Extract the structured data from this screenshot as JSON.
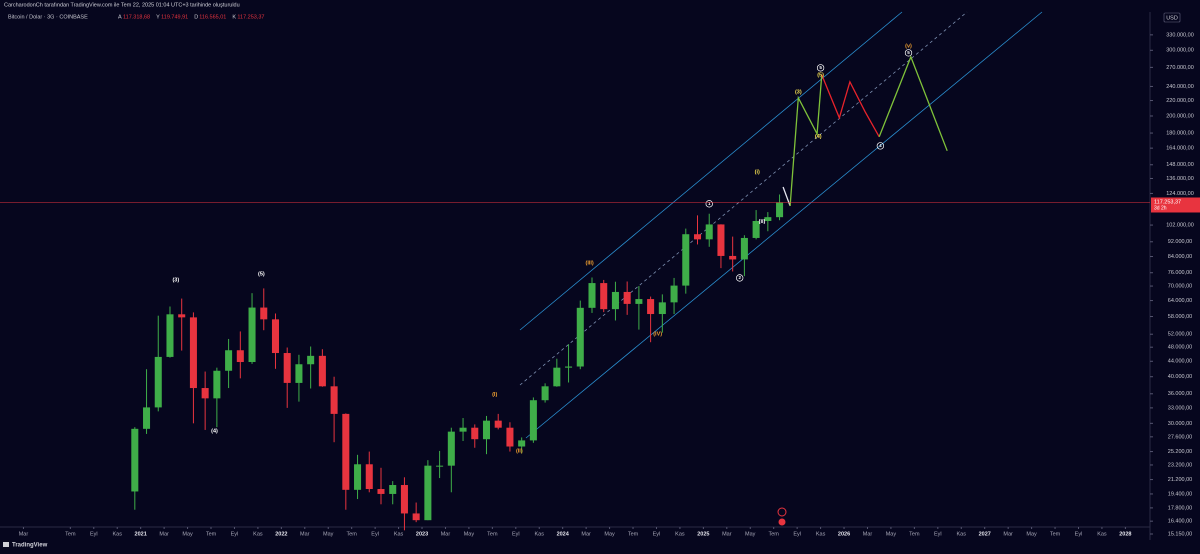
{
  "header": {
    "credit": "CarcharodonCh tarafından TradingView.com ile Tem 22, 2025 01:04 UTC+3 tarihinde oluşturuldu",
    "symbol": "Bitcoin / Dolar · 3G · COINBASE",
    "ohlc": [
      {
        "key": "A",
        "text": "117.318,68"
      },
      {
        "key": "Y",
        "text": "119.749,91"
      },
      {
        "key": "D",
        "text": "116.565,01"
      },
      {
        "key": "K",
        "text": "117.253,37"
      }
    ],
    "currency": "USD",
    "brand": "TradingView"
  },
  "chart_data": {
    "type": "candlestick",
    "log_scale": true,
    "grid": false,
    "up_color": "#3fae49",
    "down_color": "#e8343f",
    "x": [
      11.5,
      12.5,
      13.5,
      14.5,
      15.5,
      16.5,
      17.5,
      18.5,
      19.5,
      20.5,
      21.5,
      22.5,
      23.5,
      24.5,
      25.5,
      26.5,
      27.5,
      28.5,
      29.5,
      30.5,
      31.5,
      32.5,
      33.5,
      34.5,
      35.5,
      36.5,
      37.5,
      38.5,
      39.5,
      40.5,
      41.5,
      42.5,
      43.5,
      44.5,
      45.5,
      46.5,
      47.5,
      48.5,
      49.5,
      50.5,
      51.5,
      52.5,
      53.5,
      54.5,
      55.5,
      56.5,
      57.5,
      58.5,
      59.5,
      60.5,
      61.5,
      62.5,
      63.5,
      64.5,
      65.5,
      66.5
    ],
    "open": [
      19700,
      29000,
      33100,
      45200,
      58800,
      57700,
      37300,
      35000,
      41500,
      47100,
      43800,
      61300,
      57000,
      46300,
      38500,
      43200,
      45500,
      37700,
      31800,
      19900,
      23300,
      20000,
      19400,
      20500,
      17200,
      16500,
      23100,
      23100,
      28500,
      29200,
      27200,
      30500,
      29200,
      26000,
      27000,
      34600,
      37700,
      42300,
      42600,
      61200,
      71300,
      60700,
      67500,
      62700,
      64600,
      58900,
      63300,
      70200,
      96400,
      93400,
      102400,
      84300,
      82500,
      94200,
      104600,
      107100
    ],
    "high": [
      29300,
      41900,
      58300,
      61700,
      64800,
      59500,
      41300,
      42300,
      50500,
      52900,
      67000,
      69000,
      59100,
      47900,
      45800,
      48200,
      47400,
      40000,
      31900,
      24700,
      25200,
      22800,
      21000,
      21500,
      18400,
      23900,
      25300,
      29200,
      31000,
      29800,
      31400,
      31800,
      30200,
      27500,
      35200,
      38400,
      44700,
      48900,
      64000,
      73800,
      72700,
      71900,
      72000,
      70000,
      65600,
      66500,
      73600,
      99800,
      108300,
      109400,
      102500,
      95000,
      95800,
      111900,
      110500,
      123200
    ],
    "low": [
      17600,
      28100,
      32300,
      45000,
      47000,
      30000,
      28800,
      29300,
      37300,
      39600,
      43300,
      53300,
      42000,
      33000,
      34300,
      37200,
      37600,
      26700,
      17600,
      18800,
      19600,
      18200,
      18200,
      15500,
      16300,
      16500,
      21400,
      19600,
      26900,
      25800,
      24800,
      28900,
      25200,
      24900,
      26600,
      34100,
      37600,
      38600,
      41900,
      59300,
      59600,
      56600,
      58600,
      53500,
      49500,
      52500,
      58900,
      66800,
      90500,
      89200,
      78200,
      76600,
      74400,
      93400,
      98200,
      105100
    ],
    "close": [
      29000,
      33100,
      45200,
      58800,
      57700,
      37300,
      35000,
      41500,
      47100,
      43800,
      61300,
      57000,
      46300,
      38500,
      43200,
      45500,
      37700,
      31800,
      19900,
      23300,
      20000,
      19400,
      20500,
      17200,
      16500,
      23100,
      23100,
      28500,
      29200,
      27200,
      30500,
      29200,
      26000,
      27000,
      34600,
      37700,
      42300,
      42600,
      61200,
      71300,
      60700,
      67500,
      62700,
      64600,
      58900,
      63300,
      70200,
      96400,
      93400,
      102400,
      84300,
      82500,
      94200,
      104600,
      107100,
      117253.37
    ],
    "last_price": {
      "value": 117253.37,
      "label": "117.253,37"
    },
    "countdown": "3d 2h",
    "projections": [
      {
        "color": "#e6e6f0",
        "x": [
          66.8,
          67.4
        ],
        "values": [
          129000,
          114800
        ]
      },
      {
        "color": "#7fc23a",
        "x": [
          67.4,
          68.1,
          69.7,
          70.1
        ],
        "values": [
          114800,
          223700,
          179100,
          257800
        ]
      },
      {
        "color": "#e8232b",
        "x": [
          70.1,
          71.6,
          72.5,
          73.8,
          75.0
        ],
        "values": [
          257800,
          197800,
          246900,
          205200,
          175900
        ]
      },
      {
        "color": "#7fc23a",
        "x": [
          75.0,
          77.7,
          80.8
        ],
        "values": [
          175900,
          288100,
          161300
        ]
      }
    ],
    "annotations": [
      {
        "text": "(3)",
        "x": 15.0,
        "y": 72700,
        "color": "#ffffff",
        "circled": false
      },
      {
        "text": "(5)",
        "x": 22.3,
        "y": 75500,
        "color": "#ffffff",
        "circled": false
      },
      {
        "text": "(4)",
        "x": 18.3,
        "y": 28600,
        "color": "#ffffff",
        "circled": false
      },
      {
        "text": "(I)",
        "x": 42.2,
        "y": 35800,
        "color": "#f0a030",
        "circled": false
      },
      {
        "text": "(II)",
        "x": 44.3,
        "y": 25300,
        "color": "#f0a030",
        "circled": false
      },
      {
        "text": "(III)",
        "x": 50.3,
        "y": 80800,
        "color": "#f0a030",
        "circled": false
      },
      {
        "text": "(IV)",
        "x": 56.1,
        "y": 52100,
        "color": "#f0a030",
        "circled": false
      },
      {
        "text": "1",
        "x": 60.5,
        "y": 116300,
        "color": "#ffffff",
        "circled": true
      },
      {
        "text": "2",
        "x": 63.1,
        "y": 73600,
        "color": "#ffffff",
        "circled": true
      },
      {
        "text": "(i)",
        "x": 64.6,
        "y": 141700,
        "color": "#f5e050",
        "circled": false
      },
      {
        "text": "(ii)",
        "x": 65.0,
        "y": 104100,
        "color": "#ffffff",
        "circled": false
      },
      {
        "text": "(3)",
        "x": 68.1,
        "y": 232100,
        "color": "#f5e050",
        "circled": false
      },
      {
        "text": "5",
        "x": 70.0,
        "y": 269200,
        "color": "#ffffff",
        "circled": true
      },
      {
        "text": "(5)",
        "x": 70.0,
        "y": 257800,
        "color": "#f5e050",
        "circled": false
      },
      {
        "text": "(4)",
        "x": 69.8,
        "y": 175900,
        "color": "#f5e050",
        "circled": false
      },
      {
        "text": "(v)",
        "x": 77.5,
        "y": 308300,
        "color": "#f0a030",
        "circled": false
      },
      {
        "text": "5",
        "x": 77.5,
        "y": 295300,
        "color": "#ffffff",
        "circled": true
      },
      {
        "text": "4",
        "x": 75.1,
        "y": 166300,
        "color": "#ffffff",
        "circled": true
      }
    ],
    "xlim": [
      0,
      98.1
    ],
    "ylim": [
      14600,
      380000
    ],
    "xticks": [
      {
        "value": 2,
        "label": "Mar"
      },
      {
        "value": 6,
        "label": "Tem"
      },
      {
        "value": 8,
        "label": "Eyl"
      },
      {
        "value": 10,
        "label": "Kas"
      },
      {
        "value": 12,
        "label": "2021"
      },
      {
        "value": 14,
        "label": "Mar"
      },
      {
        "value": 16,
        "label": "May"
      },
      {
        "value": 18,
        "label": "Tem"
      },
      {
        "value": 20,
        "label": "Eyl"
      },
      {
        "value": 22,
        "label": "Kas"
      },
      {
        "value": 24,
        "label": "2022"
      },
      {
        "value": 26,
        "label": "Mar"
      },
      {
        "value": 28,
        "label": "May"
      },
      {
        "value": 30,
        "label": "Tem"
      },
      {
        "value": 32,
        "label": "Eyl"
      },
      {
        "value": 34,
        "label": "Kas"
      },
      {
        "value": 36,
        "label": "2023"
      },
      {
        "value": 38,
        "label": "Mar"
      },
      {
        "value": 40,
        "label": "May"
      },
      {
        "value": 42,
        "label": "Tem"
      },
      {
        "value": 44,
        "label": "Eyl"
      },
      {
        "value": 46,
        "label": "Kas"
      },
      {
        "value": 48,
        "label": "2024"
      },
      {
        "value": 50,
        "label": "Mar"
      },
      {
        "value": 52,
        "label": "May"
      },
      {
        "value": 54,
        "label": "Tem"
      },
      {
        "value": 56,
        "label": "Eyl"
      },
      {
        "value": 58,
        "label": "Kas"
      },
      {
        "value": 60,
        "label": "2025"
      },
      {
        "value": 62,
        "label": "Mar"
      },
      {
        "value": 64,
        "label": "May"
      },
      {
        "value": 66,
        "label": "Tem"
      },
      {
        "value": 68,
        "label": "Eyl"
      },
      {
        "value": 70,
        "label": "Kas"
      },
      {
        "value": 72,
        "label": "2026"
      },
      {
        "value": 74,
        "label": "Mar"
      },
      {
        "value": 76,
        "label": "May"
      },
      {
        "value": 78,
        "label": "Tem"
      },
      {
        "value": 80,
        "label": "Eyl"
      },
      {
        "value": 82,
        "label": "Kas"
      },
      {
        "value": 84,
        "label": "2027"
      },
      {
        "value": 86,
        "label": "Mar"
      },
      {
        "value": 88,
        "label": "May"
      },
      {
        "value": 90,
        "label": "Tem"
      },
      {
        "value": 92,
        "label": "Eyl"
      },
      {
        "value": 94,
        "label": "Kas"
      },
      {
        "value": 96,
        "label": "2028"
      }
    ],
    "yticks": [
      {
        "value": 330000,
        "label": "330.000,00"
      },
      {
        "value": 300000,
        "label": "300.000,00"
      },
      {
        "value": 270000,
        "label": "270.000,00"
      },
      {
        "value": 240000,
        "label": "240.000,00"
      },
      {
        "value": 220000,
        "label": "220.000,00"
      },
      {
        "value": 200000,
        "label": "200.000,00"
      },
      {
        "value": 180000,
        "label": "180.000,00"
      },
      {
        "value": 164000,
        "label": "164.000,00"
      },
      {
        "value": 148000,
        "label": "148.000,00"
      },
      {
        "value": 136000,
        "label": "136.000,00"
      },
      {
        "value": 124000,
        "label": "124.000,00"
      },
      {
        "value": 102000,
        "label": "102.000,00"
      },
      {
        "value": 92000,
        "label": "92.000,00"
      },
      {
        "value": 84000,
        "label": "84.000,00"
      },
      {
        "value": 76000,
        "label": "76.000,00"
      },
      {
        "value": 70000,
        "label": "70.000,00"
      },
      {
        "value": 64000,
        "label": "64.000,00"
      },
      {
        "value": 58000,
        "label": "58.000,00"
      },
      {
        "value": 52000,
        "label": "52.000,00"
      },
      {
        "value": 48000,
        "label": "48.000,00"
      },
      {
        "value": 44000,
        "label": "44.000,00"
      },
      {
        "value": 40000,
        "label": "40.000,00"
      },
      {
        "value": 36000,
        "label": "36.000,00"
      },
      {
        "value": 33000,
        "label": "33.000,00"
      },
      {
        "value": 30000,
        "label": "30.000,00"
      },
      {
        "value": 27600,
        "label": "27.600,00"
      },
      {
        "value": 25200,
        "label": "25.200,00"
      },
      {
        "value": 23200,
        "label": "23.200,00"
      },
      {
        "value": 21200,
        "label": "21.200,00"
      },
      {
        "value": 19400,
        "label": "19.400,00"
      },
      {
        "value": 17800,
        "label": "17.800,00"
      },
      {
        "value": 16400,
        "label": "16.400,00"
      },
      {
        "value": 15150,
        "label": "15.150,00"
      }
    ]
  }
}
